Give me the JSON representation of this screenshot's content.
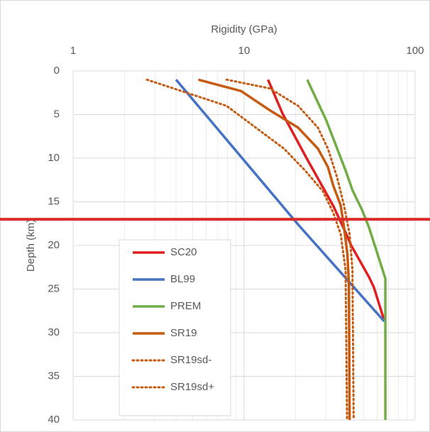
{
  "chart_data": {
    "type": "line",
    "x_label": "Rigidity (GPa)",
    "y_label": "Depth (km)",
    "x_log": true,
    "y_inverted": true,
    "xlim": [
      1,
      100
    ],
    "xticks": [
      1,
      10,
      100
    ],
    "ylim": [
      0,
      40
    ],
    "yticks": [
      0,
      5,
      10,
      15,
      20,
      25,
      30,
      35,
      40
    ],
    "grid": true,
    "minor_grid": true,
    "reference_line": {
      "y": 17,
      "color": "#dc2b2b"
    },
    "legend": "lower-left",
    "series": [
      {
        "name": "SC20",
        "color": "#e02020",
        "dash": false,
        "x": [
          13.8,
          16.8,
          23.2,
          33.3,
          39.2,
          42.3,
          53.7,
          57.4,
          66
        ],
        "y": [
          1,
          4.9,
          10,
          15.5,
          18.5,
          20,
          23.6,
          24.8,
          28.6
        ]
      },
      {
        "name": "BL99",
        "color": "#4472c4",
        "dash": false,
        "x": [
          4.0,
          20.7,
          66
        ],
        "y": [
          1,
          17.6,
          28.7
        ]
      },
      {
        "name": "PREM",
        "color": "#70ad47",
        "dash": false,
        "x": [
          23.4,
          30.3,
          39.2,
          43.1,
          48.9,
          53.7,
          67,
          67
        ],
        "y": [
          1,
          5.7,
          11.4,
          13.7,
          15.9,
          17.9,
          23.8,
          40
        ]
      },
      {
        "name": "SR19",
        "color": "#c55a11",
        "dash": false,
        "x": [
          5.4,
          9.6,
          14.1,
          20.7,
          27,
          30.9,
          33.3,
          36.7,
          38.4,
          40.2,
          41,
          41.4
        ],
        "y": [
          1,
          2.3,
          4.5,
          6.5,
          8.9,
          11,
          13.2,
          15.4,
          17.9,
          21,
          24.4,
          40
        ]
      },
      {
        "name": "SR19sd-",
        "color": "#c55a11",
        "dash": true,
        "x": [
          2.7,
          4.3,
          7.9,
          11.7,
          17.1,
          22.7,
          28.9,
          33.3,
          36.7,
          39.2,
          40
        ],
        "y": [
          1,
          2.3,
          4,
          6.5,
          8.9,
          11.4,
          13.8,
          16.3,
          18.7,
          22.8,
          40
        ]
      },
      {
        "name": "SR19sd+",
        "color": "#c55a11",
        "dash": true,
        "x": [
          7.9,
          14.1,
          20.7,
          27,
          30.9,
          35,
          38.4,
          41.4,
          43,
          43.7
        ],
        "y": [
          1,
          2,
          4,
          6.5,
          8.9,
          12.2,
          15.4,
          18.7,
          22.8,
          40
        ]
      }
    ]
  }
}
